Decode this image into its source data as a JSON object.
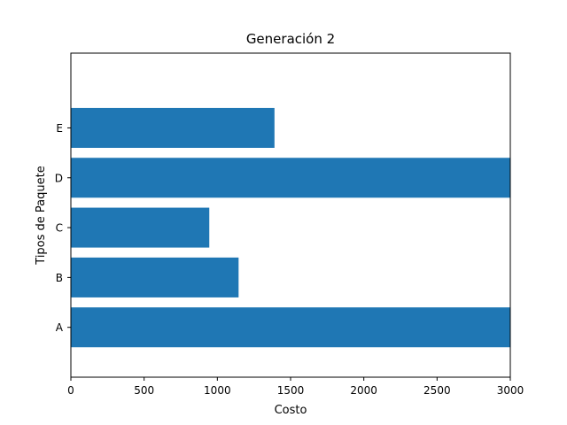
{
  "chart_data": {
    "type": "bar",
    "orientation": "horizontal",
    "title": "Generación 2",
    "xlabel": "Costo",
    "ylabel": "Tipos de Paquete",
    "categories": [
      "A",
      "B",
      "C",
      "D",
      "E"
    ],
    "values": [
      3000,
      1145,
      945,
      3000,
      1390
    ],
    "xlim": [
      0,
      3000
    ],
    "xticks": [
      "0",
      "500",
      "1000",
      "1500",
      "2000",
      "2500",
      "3000"
    ],
    "ylim": [
      -1,
      5.5
    ],
    "grid": false,
    "bar_color": "#1f77b4"
  }
}
